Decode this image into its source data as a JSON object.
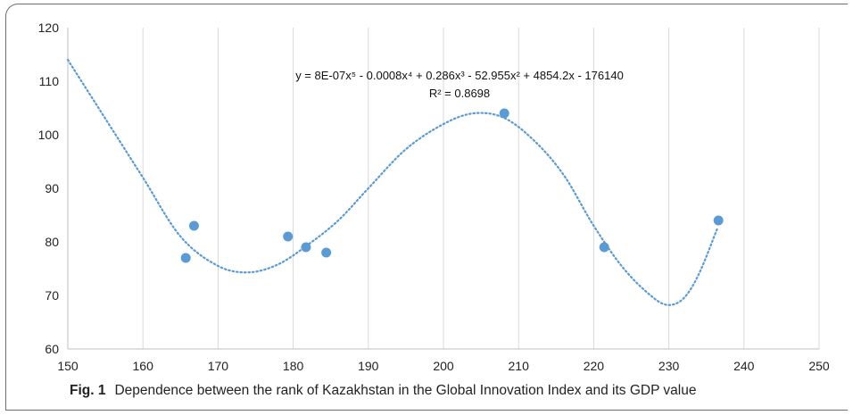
{
  "chart_data": {
    "type": "scatter",
    "x": [
      165.7,
      166.8,
      179.3,
      181.7,
      184.4,
      208.1,
      221.4,
      236.6
    ],
    "y": [
      77,
      83,
      81,
      79,
      78,
      104,
      79,
      84
    ],
    "xlim": [
      150,
      250
    ],
    "ylim": [
      60,
      120
    ],
    "xticks": [
      "150",
      "160",
      "170",
      "180",
      "190",
      "200",
      "210",
      "220",
      "230",
      "240",
      "250"
    ],
    "yticks": [
      "60",
      "70",
      "80",
      "90",
      "100",
      "110",
      "120"
    ],
    "grid": {
      "vertical": true,
      "horizontal": false
    },
    "trendline": {
      "type": "polynomial",
      "order": 5,
      "x_range": [
        150,
        236.6
      ],
      "equation": "y = 8E-07x⁵ - 0.0008x⁴ + 0.286x³ - 52.955x² + 4854.2x - 176140",
      "r_squared": "R² = 0.8698"
    },
    "colors": {
      "points": "#5b9bd5",
      "trendline": "#5b9bd5",
      "grid": "#d9d9d9"
    }
  },
  "caption": {
    "label": "Fig. 1",
    "text": "Dependence between the rank of Kazakhstan in the Global Innovation Index and its GDP value"
  }
}
